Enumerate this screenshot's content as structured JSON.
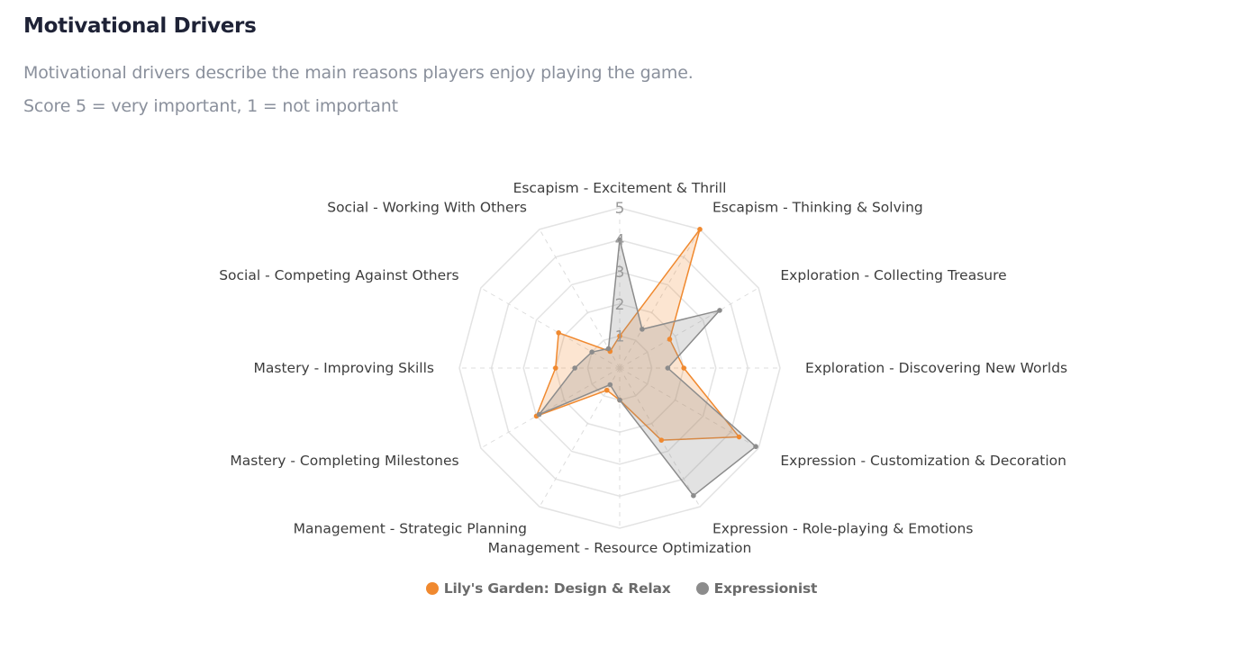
{
  "header": {
    "title": "Motivational Drivers",
    "subtitle_line1": "Motivational drivers describe the main reasons players enjoy playing the game.",
    "subtitle_line2": "Score 5 = very important, 1 = not important"
  },
  "chart_data": {
    "type": "radar",
    "axes": [
      "Escapism - Excitement & Thrill",
      "Escapism - Thinking & Solving",
      "Exploration - Collecting Treasure",
      "Exploration - Discovering New Worlds",
      "Expression - Customization & Decoration",
      "Expression - Role-playing & Emotions",
      "Management - Resource Optimization",
      "Management - Strategic Planning",
      "Mastery - Completing Milestones",
      "Mastery - Improving Skills",
      "Social - Competing Against Others",
      "Social - Working With Others"
    ],
    "scale_labels": [
      "1",
      "2",
      "3",
      "4",
      "5"
    ],
    "range": [
      0,
      5
    ],
    "series": [
      {
        "name": "Lily's Garden: Design & Relax",
        "color": "#f0892f",
        "values": [
          1.0,
          5.0,
          1.8,
          2.0,
          4.3,
          2.6,
          1.0,
          0.8,
          3.0,
          2.0,
          2.2,
          0.6
        ]
      },
      {
        "name": "Expressionist",
        "color": "#8c8c8c",
        "values": [
          4.0,
          1.4,
          3.6,
          1.5,
          4.9,
          4.6,
          1.0,
          0.6,
          2.9,
          1.4,
          1.0,
          0.7
        ]
      }
    ]
  }
}
